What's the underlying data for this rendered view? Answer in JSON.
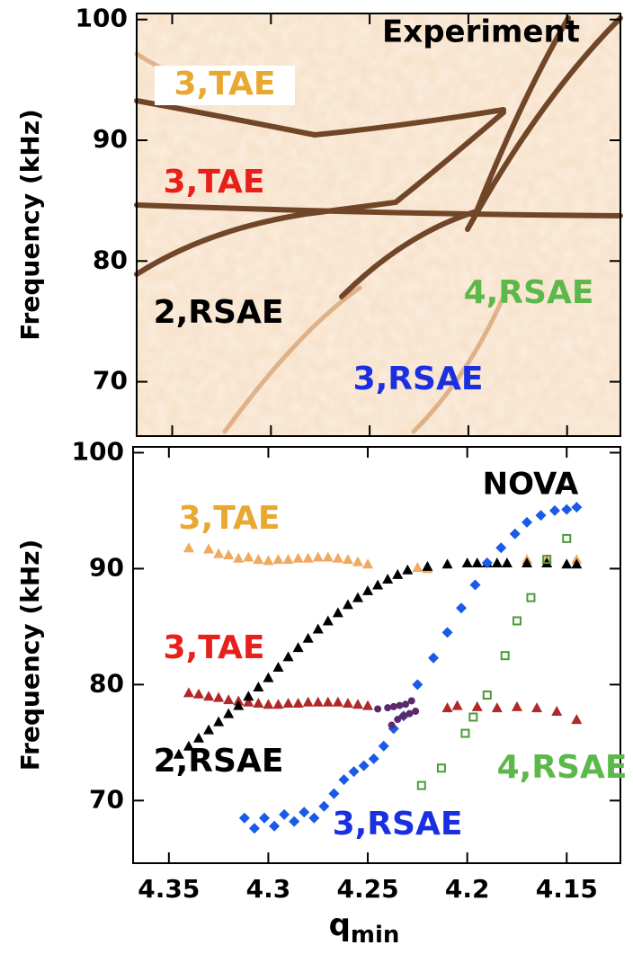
{
  "chart_data": [
    {
      "type": "spectrogram",
      "title": "Experiment",
      "y_label": "Frequency (kHz)",
      "ylim": [
        65.5,
        100.5
      ],
      "yticks": [
        70,
        80,
        90,
        100
      ],
      "annotations": [
        {
          "text": "3,TAE",
          "color": "#e8a832"
        },
        {
          "text": "3,TAE",
          "color": "#e8201c"
        },
        {
          "text": "2,RSAE",
          "color": "#000000"
        },
        {
          "text": "4,RSAE",
          "color": "#5cb84a"
        },
        {
          "text": "3,RSAE",
          "color": "#1a2fe0"
        }
      ]
    },
    {
      "type": "scatter",
      "title": "NOVA",
      "y_label": "Frequency (kHz)",
      "x_label": "q",
      "x_label_sub": "min",
      "xlim": [
        4.368,
        4.123
      ],
      "xticks": [
        4.35,
        4.3,
        4.25,
        4.2,
        4.15
      ],
      "ylim": [
        64.6,
        100.5
      ],
      "yticks": [
        70,
        80,
        90,
        100
      ],
      "series": [
        {
          "name": "3,TAE",
          "color": "#e8a832",
          "marker_color": "#f0aa60",
          "marker": "triangle",
          "x": [
            4.34,
            4.33,
            4.325,
            4.32,
            4.315,
            4.31,
            4.305,
            4.3,
            4.295,
            4.29,
            4.285,
            4.28,
            4.275,
            4.27,
            4.265,
            4.26,
            4.255,
            4.25,
            4.225,
            4.22,
            4.17,
            4.16,
            4.145
          ],
          "values": [
            91.8,
            91.7,
            91.3,
            91.2,
            90.9,
            91.0,
            90.8,
            90.7,
            90.8,
            90.8,
            90.9,
            90.9,
            91.0,
            91.0,
            90.9,
            90.8,
            90.6,
            90.4,
            90.1,
            90.0,
            90.8,
            90.8,
            90.8
          ]
        },
        {
          "name": "3,TAE",
          "color": "#e8201c",
          "marker_color": "#b02828",
          "marker": "triangle",
          "x": [
            4.34,
            4.335,
            4.33,
            4.325,
            4.32,
            4.315,
            4.31,
            4.305,
            4.3,
            4.295,
            4.29,
            4.285,
            4.28,
            4.275,
            4.27,
            4.265,
            4.26,
            4.255,
            4.25,
            4.21,
            4.205,
            4.195,
            4.185,
            4.175,
            4.165,
            4.155,
            4.145
          ],
          "values": [
            79.3,
            79.2,
            79.0,
            78.9,
            78.7,
            78.6,
            78.5,
            78.4,
            78.3,
            78.3,
            78.4,
            78.4,
            78.5,
            78.5,
            78.5,
            78.5,
            78.4,
            78.3,
            78.2,
            78.0,
            78.2,
            78.1,
            78.0,
            78.1,
            78.0,
            77.7,
            77.0
          ]
        },
        {
          "name": "2,RSAE",
          "color": "#000000",
          "marker_color": "#000000",
          "marker": "triangle",
          "x": [
            4.345,
            4.34,
            4.335,
            4.33,
            4.325,
            4.32,
            4.315,
            4.31,
            4.305,
            4.3,
            4.295,
            4.29,
            4.285,
            4.28,
            4.275,
            4.27,
            4.265,
            4.26,
            4.255,
            4.25,
            4.245,
            4.24,
            4.235,
            4.23,
            4.22,
            4.21,
            4.2,
            4.195,
            4.19,
            4.185,
            4.18,
            4.17,
            4.16,
            4.15,
            4.145
          ],
          "values": [
            74.0,
            74.7,
            75.4,
            76.1,
            76.8,
            77.5,
            78.2,
            79.0,
            79.8,
            80.6,
            81.5,
            82.4,
            83.2,
            84.0,
            84.8,
            85.5,
            86.2,
            86.9,
            87.5,
            88.1,
            88.6,
            89.1,
            89.5,
            89.9,
            90.2,
            90.4,
            90.5,
            90.5,
            90.5,
            90.5,
            90.5,
            90.5,
            90.5,
            90.4,
            90.4
          ]
        },
        {
          "name": "4,RSAE",
          "color": "#5cb84a",
          "marker_color": "#4a9a3a",
          "marker": "square",
          "x": [
            4.223,
            4.213,
            4.201,
            4.197,
            4.19,
            4.181,
            4.175,
            4.168,
            4.16,
            4.15
          ],
          "values": [
            71.3,
            72.8,
            75.8,
            77.2,
            79.1,
            82.5,
            85.5,
            87.5,
            90.8,
            92.6
          ]
        },
        {
          "name": "3,RSAE",
          "color": "#1a2fe0",
          "marker_color": "#1a5ae8",
          "marker": "diamond",
          "x": [
            4.312,
            4.307,
            4.302,
            4.297,
            4.292,
            4.287,
            4.282,
            4.277,
            4.272,
            4.267,
            4.262,
            4.257,
            4.252,
            4.247,
            4.242,
            4.237,
            4.232,
            4.225,
            4.217,
            4.21,
            4.203,
            4.196,
            4.19,
            4.183,
            4.176,
            4.17,
            4.163,
            4.156,
            4.15,
            4.145
          ],
          "values": [
            68.5,
            67.6,
            68.5,
            67.8,
            68.8,
            68.2,
            69.0,
            68.5,
            69.5,
            70.6,
            71.8,
            72.5,
            73.0,
            73.6,
            74.7,
            76.2,
            77.3,
            80.0,
            82.3,
            84.5,
            86.6,
            88.6,
            90.5,
            91.8,
            93.0,
            94.0,
            94.6,
            95.0,
            95.1,
            95.3
          ]
        },
        {
          "color": "#5a2a6a",
          "marker_color": "#5a2a6a",
          "marker": "circle",
          "x": [
            4.245,
            4.24,
            4.237,
            4.234,
            4.231,
            4.228
          ],
          "values": [
            77.9,
            78.0,
            78.1,
            78.2,
            78.3,
            78.6
          ]
        },
        {
          "color": "#5a2a6a",
          "marker_color": "#5a2a6a",
          "marker": "circle",
          "x": [
            4.238,
            4.235,
            4.232,
            4.229,
            4.226
          ],
          "values": [
            76.5,
            77.0,
            77.3,
            77.5,
            77.7
          ]
        }
      ]
    }
  ]
}
